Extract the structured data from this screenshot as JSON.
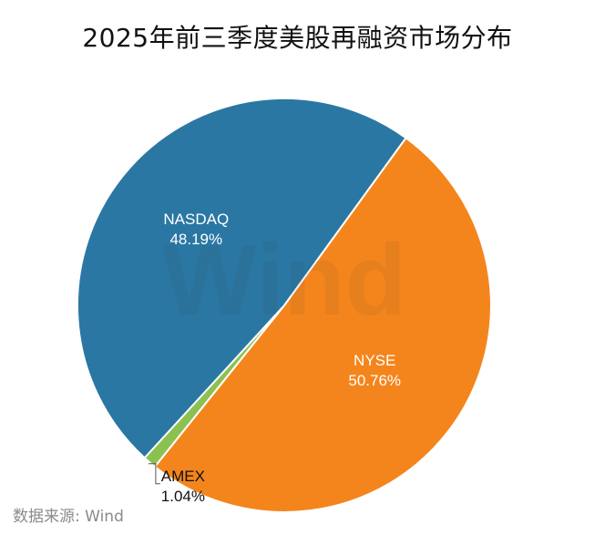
{
  "chart_data": {
    "type": "pie",
    "title": "2025年前三季度美股再融资市场分布",
    "categories": [
      "NYSE",
      "AMEX",
      "NASDAQ"
    ],
    "values": [
      50.76,
      1.04,
      48.19
    ],
    "labels": [
      "50.76%",
      "1.04%",
      "48.19%"
    ],
    "colors": [
      "#f4851c",
      "#8cc152",
      "#2a77a3"
    ],
    "start_angle_deg": 306,
    "watermark": "Wind",
    "source": "数据来源: Wind"
  }
}
